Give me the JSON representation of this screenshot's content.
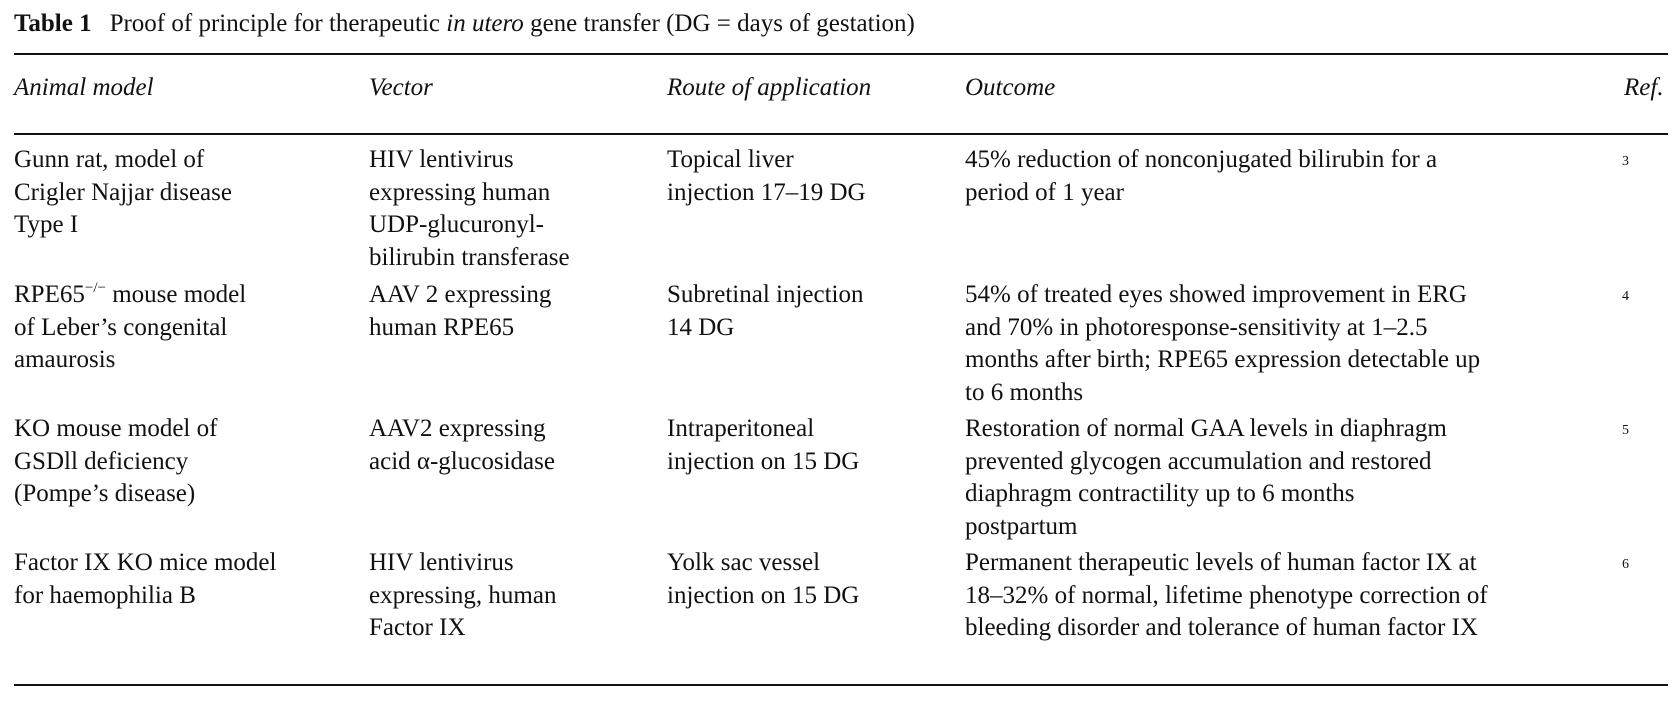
{
  "caption": {
    "label": "Table 1",
    "text_before": "Proof of principle for therapeutic ",
    "text_italic": "in utero",
    "text_after": " gene transfer (DG = days of gestation)"
  },
  "columns": {
    "animal_model": "Animal model",
    "vector": "Vector",
    "route": "Route of application",
    "outcome": "Outcome",
    "ref": "Ref."
  },
  "rows": [
    {
      "animal_model": "Gunn rat, model of\nCrigler Najjar disease\nType I",
      "vector": "HIV lentivirus\nexpressing human\nUDP-glucuronyl-\nbilirubin transferase",
      "route": "Topical liver\ninjection 17–19 DG",
      "outcome": "45% reduction of nonconjugated bilirubin for a\nperiod of 1 year",
      "ref": "3"
    },
    {
      "animal_model_prefix": "RPE65",
      "animal_model_sup": "−/−",
      "animal_model_suffix": " mouse model\nof Leber’s congenital\namaurosis",
      "vector": "AAV 2 expressing\nhuman RPE65",
      "route": "Subretinal injection\n14 DG",
      "outcome": "54% of treated eyes showed improvement in ERG\nand 70% in photoresponse-sensitivity at 1–2.5\nmonths after birth; RPE65 expression detectable up\nto 6 months",
      "ref": "4"
    },
    {
      "animal_model": "KO mouse model of\nGSDll deficiency\n(Pompe’s disease)",
      "vector": "AAV2 expressing\nacid α-glucosidase",
      "route": "Intraperitoneal\ninjection on 15 DG",
      "outcome": "Restoration of normal GAA levels in diaphragm\nprevented glycogen accumulation and restored\ndiaphragm contractility up to 6 months\npostpartum",
      "ref": "5"
    },
    {
      "animal_model": "Factor IX KO mice model\nfor haemophilia B",
      "vector": "HIV lentivirus\nexpressing, human\nFactor IX",
      "route": "Yolk sac vessel\ninjection on 15 DG",
      "outcome": "Permanent therapeutic levels of human factor IX at\n18–32% of normal, lifetime phenotype correction of\nbleeding disorder and tolerance of human factor IX",
      "ref": "6"
    }
  ]
}
